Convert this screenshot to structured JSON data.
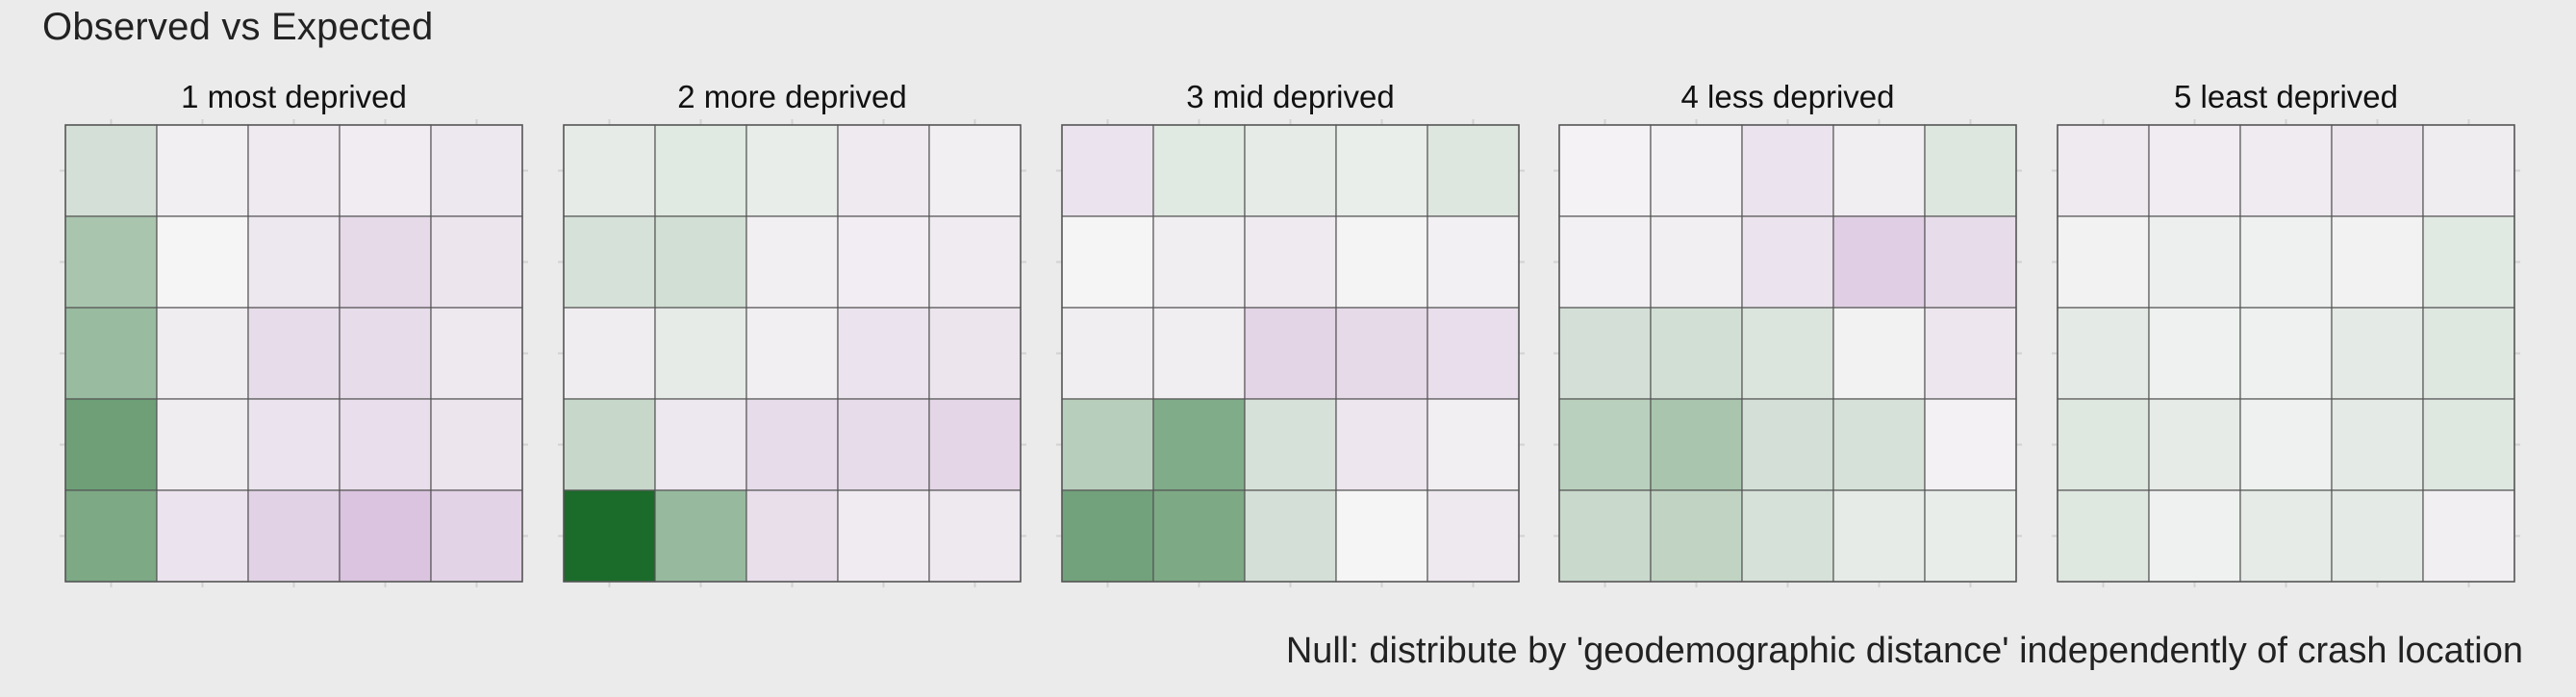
{
  "title": "Observed vs Expected",
  "caption": "Null: distribute by 'geodemographic distance' independently of crash location",
  "colors": {
    "background": "#ebebeb",
    "cell_border": "#555555",
    "scale_low_green": "#1b6b2a",
    "scale_mid": "#f5f5f5",
    "scale_high_purple": "#c7a1cf"
  },
  "chart_data": {
    "type": "heatmap",
    "facet_type": "small-multiples",
    "value_meaning": "signed deviation of observed from expected (negative = green, positive = purple)",
    "value_range": [
      -1,
      1
    ],
    "grid": "5x5 per panel",
    "panels": [
      {
        "name": "1 most deprived",
        "values": [
          [
            -0.15,
            0.07,
            0.13,
            0.11,
            0.17
          ],
          [
            -0.35,
            0.0,
            0.17,
            0.33,
            0.19
          ],
          [
            -0.42,
            0.1,
            0.3,
            0.3,
            0.16
          ],
          [
            -0.62,
            0.1,
            0.22,
            0.27,
            0.19
          ],
          [
            -0.55,
            0.21,
            0.42,
            0.58,
            0.4
          ]
        ]
      },
      {
        "name": "2 more deprived",
        "values": [
          [
            -0.07,
            -0.09,
            -0.06,
            0.14,
            0.07
          ],
          [
            -0.14,
            -0.16,
            0.07,
            0.09,
            0.12
          ],
          [
            0.1,
            -0.07,
            0.07,
            0.21,
            0.19
          ],
          [
            -0.21,
            0.17,
            0.3,
            0.3,
            0.37
          ],
          [
            -1.0,
            -0.43,
            0.26,
            0.12,
            0.16
          ]
        ]
      },
      {
        "name": "3 mid deprived",
        "values": [
          [
            0.22,
            -0.09,
            -0.07,
            -0.05,
            -0.11
          ],
          [
            0.0,
            0.08,
            0.13,
            0.01,
            0.06
          ],
          [
            0.08,
            0.08,
            0.39,
            0.32,
            0.27
          ],
          [
            -0.28,
            -0.53,
            -0.14,
            0.18,
            0.07
          ],
          [
            -0.6,
            -0.55,
            -0.15,
            0.0,
            0.15
          ]
        ]
      },
      {
        "name": "4 less deprived",
        "values": [
          [
            0.03,
            0.06,
            0.21,
            0.08,
            -0.11
          ],
          [
            0.06,
            0.07,
            0.22,
            0.45,
            0.3
          ],
          [
            -0.15,
            -0.16,
            -0.12,
            0.04,
            0.18
          ],
          [
            -0.27,
            -0.35,
            -0.15,
            -0.14,
            0.05
          ],
          [
            -0.2,
            -0.24,
            -0.14,
            -0.07,
            -0.06
          ]
        ]
      },
      {
        "name": "5 least deprived",
        "values": [
          [
            0.13,
            0.11,
            0.12,
            0.19,
            0.1
          ],
          [
            0.04,
            -0.04,
            -0.03,
            0.04,
            -0.09
          ],
          [
            -0.08,
            -0.03,
            -0.03,
            -0.08,
            -0.1
          ],
          [
            -0.1,
            -0.07,
            -0.03,
            -0.08,
            -0.1
          ],
          [
            -0.1,
            -0.03,
            -0.07,
            -0.08,
            0.07
          ]
        ]
      }
    ]
  }
}
